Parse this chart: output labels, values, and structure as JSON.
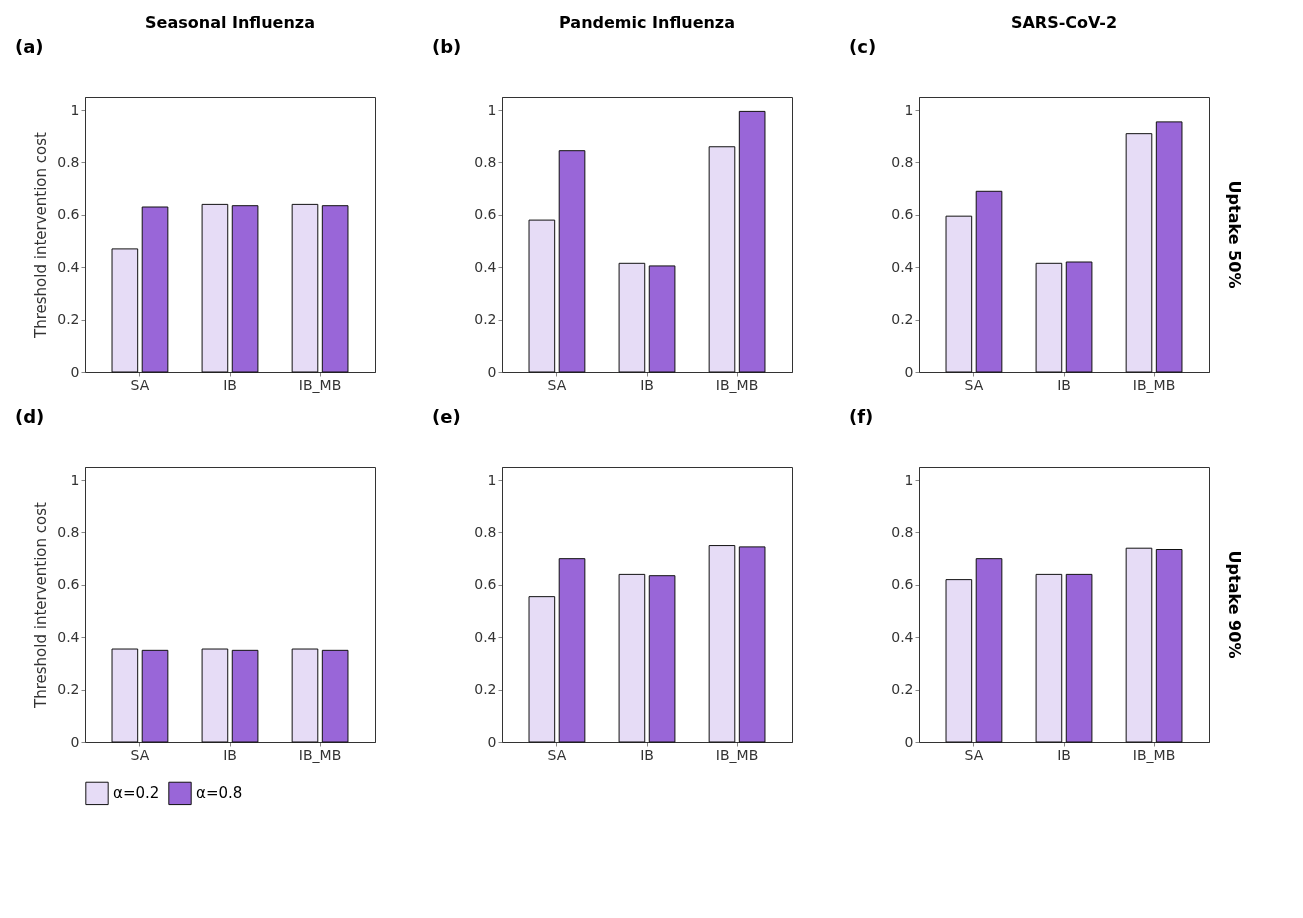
{
  "chart_data": [
    {
      "type": "bar",
      "title": "Seasonal Influenza",
      "ylabel": "Threshold intervention cost",
      "categories": [
        "SA",
        "IB",
        "IB_MB"
      ],
      "series": [
        {
          "name": "α=0.2",
          "color": "#e6dcf6",
          "values": [
            0.47,
            0.64,
            0.64
          ]
        },
        {
          "name": "α=0.8",
          "color": "#9966d8",
          "values": [
            0.63,
            0.635,
            0.635
          ]
        }
      ],
      "ylim": [
        0,
        1.05
      ],
      "yticks": [
        0,
        0.2,
        0.4,
        0.6,
        0.8,
        1
      ],
      "grid": false,
      "legend": "bottom",
      "annotations": [
        "(a)"
      ]
    },
    {
      "type": "bar",
      "title": "Pandemic Influenza",
      "categories": [
        "SA",
        "IB",
        "IB_MB"
      ],
      "series": [
        {
          "name": "α=0.2",
          "color": "#e6dcf6",
          "values": [
            0.58,
            0.415,
            0.86
          ]
        },
        {
          "name": "α=0.8",
          "color": "#9966d8",
          "values": [
            0.845,
            0.405,
            0.995
          ]
        }
      ],
      "ylim": [
        0,
        1.05
      ],
      "yticks": [
        0,
        0.2,
        0.4,
        0.6,
        0.8,
        1
      ],
      "grid": false,
      "legend": "bottom",
      "annotations": [
        "(b)"
      ]
    },
    {
      "type": "bar",
      "title": "SARS-CoV-2",
      "categories": [
        "SA",
        "IB",
        "IB_MB"
      ],
      "series": [
        {
          "name": "α=0.2",
          "color": "#e6dcf6",
          "values": [
            0.595,
            0.415,
            0.91
          ]
        },
        {
          "name": "α=0.8",
          "color": "#9966d8",
          "values": [
            0.69,
            0.42,
            0.955
          ]
        }
      ],
      "ylim": [
        0,
        1.05
      ],
      "yticks": [
        0,
        0.2,
        0.4,
        0.6,
        0.8,
        1
      ],
      "grid": false,
      "legend": "bottom",
      "annotations": [
        "(c)",
        "Uptake 50%"
      ]
    },
    {
      "type": "bar",
      "ylabel": "Threshold intervention cost",
      "categories": [
        "SA",
        "IB",
        "IB_MB"
      ],
      "series": [
        {
          "name": "α=0.2",
          "color": "#e6dcf6",
          "values": [
            0.355,
            0.355,
            0.355
          ]
        },
        {
          "name": "α=0.8",
          "color": "#9966d8",
          "values": [
            0.35,
            0.35,
            0.35
          ]
        }
      ],
      "ylim": [
        0,
        1.05
      ],
      "yticks": [
        0,
        0.2,
        0.4,
        0.6,
        0.8,
        1
      ],
      "grid": false,
      "legend": "bottom",
      "annotations": [
        "(d)"
      ]
    },
    {
      "type": "bar",
      "categories": [
        "SA",
        "IB",
        "IB_MB"
      ],
      "series": [
        {
          "name": "α=0.2",
          "color": "#e6dcf6",
          "values": [
            0.555,
            0.64,
            0.75
          ]
        },
        {
          "name": "α=0.8",
          "color": "#9966d8",
          "values": [
            0.7,
            0.635,
            0.745
          ]
        }
      ],
      "ylim": [
        0,
        1.05
      ],
      "yticks": [
        0,
        0.2,
        0.4,
        0.6,
        0.8,
        1
      ],
      "grid": false,
      "legend": "bottom",
      "annotations": [
        "(e)"
      ]
    },
    {
      "type": "bar",
      "categories": [
        "SA",
        "IB",
        "IB_MB"
      ],
      "series": [
        {
          "name": "α=0.2",
          "color": "#e6dcf6",
          "values": [
            0.62,
            0.64,
            0.74
          ]
        },
        {
          "name": "α=0.8",
          "color": "#9966d8",
          "values": [
            0.7,
            0.64,
            0.735
          ]
        }
      ],
      "ylim": [
        0,
        1.05
      ],
      "yticks": [
        0,
        0.2,
        0.4,
        0.6,
        0.8,
        1
      ],
      "grid": false,
      "legend": "bottom",
      "annotations": [
        "(f)",
        "Uptake 90%"
      ]
    }
  ]
}
